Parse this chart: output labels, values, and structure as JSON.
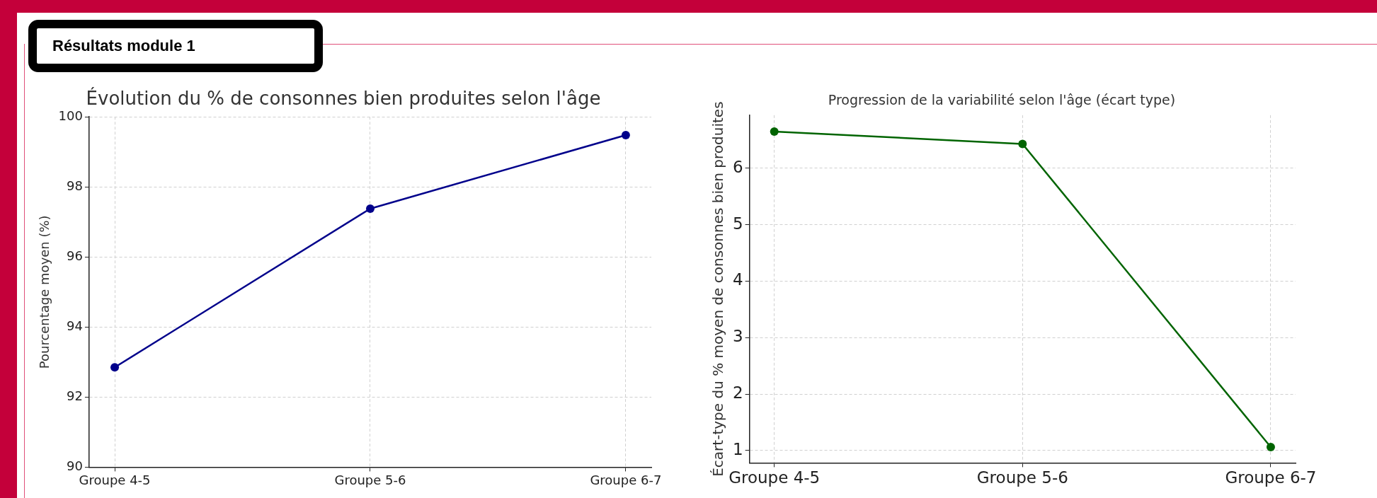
{
  "chart_data": [
    {
      "type": "line",
      "title": "Évolution du % de consonnes bien produites selon l'âge",
      "ylabel": "Pourcentage moyen (%)",
      "annotations": [
        "Résultats module 1"
      ],
      "categories": [
        "Groupe 4-5",
        "Groupe 5-6",
        "Groupe 6-7"
      ],
      "series": [
        {
          "color": "#00008b",
          "values": [
            92.85,
            97.38,
            99.48
          ]
        }
      ],
      "ylim": [
        90,
        100
      ],
      "yticks": [
        90,
        92,
        94,
        96,
        98,
        100
      ],
      "grid": true,
      "marker": "circle",
      "line_style": "solid"
    },
    {
      "type": "line",
      "title": "Progression de la variabilité selon l'âge (écart type)",
      "ylabel": "Écart-type du % moyen de consonnes bien produites",
      "categories": [
        "Groupe 4-5",
        "Groupe 5-6",
        "Groupe 6-7"
      ],
      "series": [
        {
          "color": "#006400",
          "values": [
            6.65,
            6.43,
            1.06
          ]
        }
      ],
      "ylim": [
        0.78,
        6.94
      ],
      "yticks": [
        1,
        2,
        3,
        4,
        5,
        6
      ],
      "grid": true,
      "marker": "circle",
      "line_style": "solid"
    }
  ]
}
